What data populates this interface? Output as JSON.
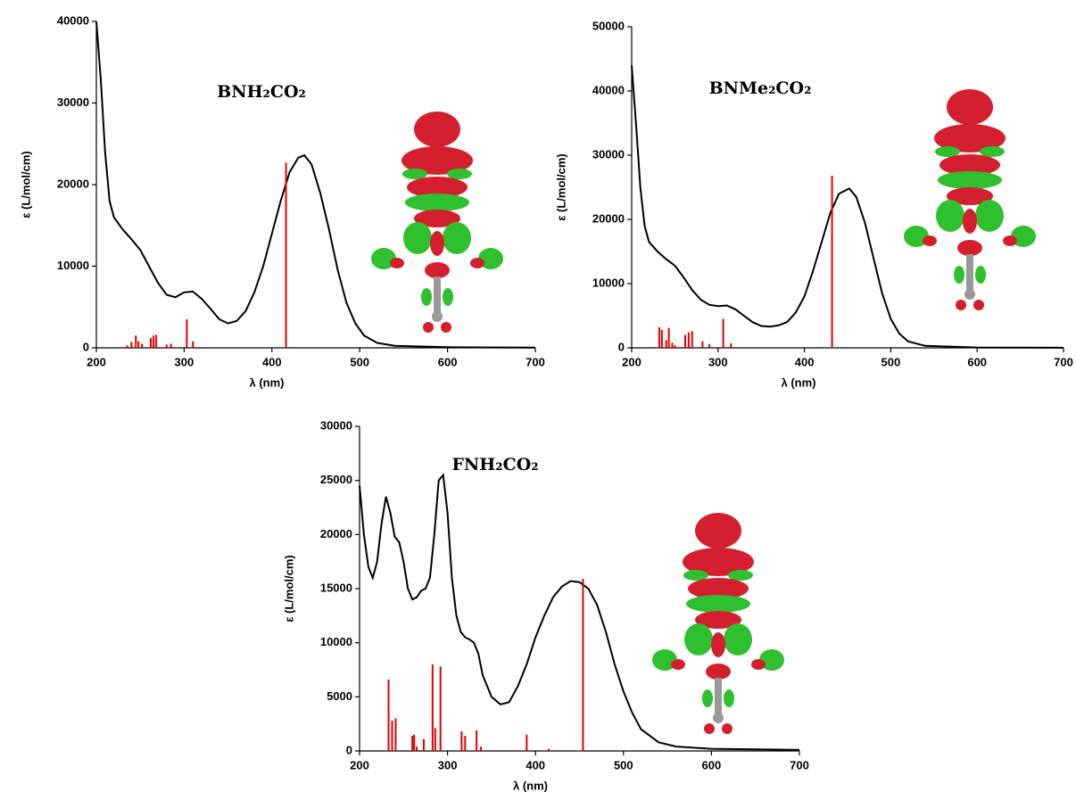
{
  "chart_data": [
    {
      "type": "line",
      "title": "BNH₂CO₂",
      "x_label": "λ (nm)",
      "y_label": "ε (L/mol/cm)",
      "color": "#000000",
      "x": [
        200,
        205,
        210,
        215,
        220,
        230,
        240,
        250,
        260,
        270,
        280,
        290,
        300,
        310,
        320,
        330,
        340,
        350,
        360,
        370,
        380,
        390,
        400,
        410,
        420,
        430,
        437,
        445,
        455,
        465,
        475,
        485,
        495,
        505,
        520,
        540,
        600,
        700
      ],
      "values": [
        40000,
        33000,
        24000,
        18000,
        16000,
        14500,
        13300,
        12000,
        10000,
        8000,
        6500,
        6200,
        6800,
        6900,
        6000,
        4800,
        3500,
        3000,
        3300,
        4500,
        6800,
        10000,
        14000,
        18000,
        21500,
        23300,
        23600,
        22500,
        19000,
        14500,
        9500,
        5500,
        3000,
        1500,
        600,
        250,
        80,
        20
      ],
      "sticks": {
        "color": "#e00000",
        "x": [
          235,
          240,
          245,
          248,
          252,
          262,
          265,
          268,
          280,
          285,
          303,
          310,
          416
        ],
        "values": [
          300,
          700,
          1500,
          800,
          500,
          1200,
          1500,
          1600,
          400,
          500,
          3500,
          800,
          22700
        ]
      },
      "xlim": [
        200,
        700
      ],
      "xticks": [
        200,
        300,
        400,
        500,
        600,
        700
      ],
      "ylim": [
        0,
        40000
      ],
      "yticks": [
        0,
        10000,
        20000,
        30000,
        40000
      ]
    },
    {
      "type": "line",
      "title": "BNMe₂CO₂",
      "x_label": "λ (nm)",
      "y_label": "ε (L/mol/cm)",
      "color": "#000000",
      "x": [
        200,
        205,
        210,
        215,
        220,
        230,
        240,
        250,
        260,
        270,
        280,
        290,
        300,
        310,
        320,
        330,
        340,
        350,
        360,
        370,
        380,
        390,
        400,
        410,
        420,
        430,
        440,
        452,
        460,
        470,
        480,
        490,
        500,
        510,
        520,
        540,
        600,
        700
      ],
      "values": [
        44000,
        35000,
        25000,
        19000,
        16500,
        15000,
        13800,
        12800,
        11000,
        9000,
        7500,
        6700,
        6500,
        6600,
        6000,
        5000,
        4000,
        3400,
        3300,
        3500,
        4000,
        5500,
        8000,
        12000,
        16500,
        21000,
        24000,
        24800,
        23500,
        19500,
        14000,
        8500,
        4500,
        2200,
        1000,
        300,
        50,
        10
      ],
      "sticks": {
        "color": "#e00000",
        "x": [
          232,
          235,
          240,
          243,
          247,
          250,
          262,
          266,
          270,
          282,
          290,
          306,
          315,
          432
        ],
        "values": [
          3200,
          2800,
          1200,
          3100,
          800,
          400,
          2000,
          2400,
          2600,
          1000,
          600,
          4500,
          700,
          26800
        ]
      },
      "xlim": [
        200,
        700
      ],
      "xticks": [
        200,
        300,
        400,
        500,
        600,
        700
      ],
      "ylim": [
        0,
        50000
      ],
      "yticks": [
        0,
        10000,
        20000,
        30000,
        40000,
        50000
      ]
    },
    {
      "type": "line",
      "title": "FNH₂CO₂",
      "x_label": "λ (nm)",
      "y_label": "ε (L/mol/cm)",
      "color": "#000000",
      "x": [
        200,
        205,
        210,
        215,
        220,
        225,
        230,
        235,
        240,
        245,
        250,
        255,
        260,
        265,
        270,
        275,
        280,
        285,
        290,
        295,
        300,
        305,
        310,
        315,
        320,
        325,
        330,
        335,
        340,
        350,
        360,
        370,
        380,
        390,
        400,
        410,
        420,
        430,
        440,
        450,
        460,
        470,
        480,
        490,
        500,
        510,
        520,
        540,
        560,
        600,
        700
      ],
      "values": [
        24500,
        20000,
        17000,
        16000,
        17500,
        21000,
        23500,
        22000,
        19800,
        19300,
        17500,
        15000,
        14000,
        14200,
        14800,
        15000,
        16000,
        20000,
        25000,
        25500,
        22000,
        16000,
        12500,
        11000,
        10500,
        10300,
        10000,
        9000,
        7000,
        5000,
        4300,
        4500,
        6000,
        8000,
        10500,
        12500,
        14200,
        15200,
        15700,
        15600,
        15000,
        13500,
        11000,
        8000,
        5500,
        3500,
        2000,
        800,
        400,
        200,
        100
      ],
      "sticks": {
        "color": "#e00000",
        "x": [
          233,
          237,
          241,
          260,
          262,
          265,
          273,
          283,
          286,
          292,
          316,
          320,
          333,
          338,
          390,
          415,
          454
        ],
        "values": [
          6600,
          2800,
          3000,
          1400,
          1500,
          400,
          1100,
          8000,
          2100,
          7800,
          1800,
          1400,
          1900,
          400,
          1500,
          200,
          15900
        ]
      },
      "xlim": [
        200,
        700
      ],
      "xticks": [
        200,
        300,
        400,
        500,
        600,
        700
      ],
      "ylim": [
        0,
        30000
      ],
      "yticks": [
        0,
        5000,
        10000,
        15000,
        20000,
        25000,
        30000
      ]
    }
  ]
}
